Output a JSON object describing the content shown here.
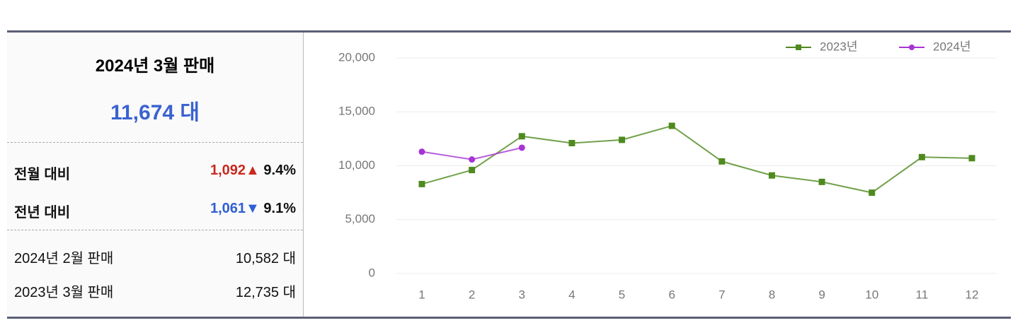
{
  "summary": {
    "title": "2024년 3월 판매",
    "total": "11,674 대",
    "compare": [
      {
        "label": "전월 대비",
        "diff": "1,092▲",
        "rate": "9.4%"
      },
      {
        "label": "전년 대비",
        "diff": "1,061▼",
        "rate": "9.1%"
      }
    ],
    "refs": [
      {
        "label": "2024년 2월 판매",
        "value": "10,582 대"
      },
      {
        "label": "2023년 3월 판매",
        "value": "12,735 대"
      }
    ]
  },
  "chart_data": {
    "type": "line",
    "categories": [
      "1",
      "2",
      "3",
      "4",
      "5",
      "6",
      "7",
      "8",
      "9",
      "10",
      "11",
      "12"
    ],
    "series": [
      {
        "name": "2023년",
        "color": "#4f8a1f",
        "values": [
          8300,
          9600,
          12735,
          12100,
          12400,
          13700,
          10400,
          9100,
          8500,
          7500,
          10800,
          10700
        ]
      },
      {
        "name": "2024년",
        "color": "#a634d4",
        "values": [
          11300,
          10582,
          11674,
          null,
          null,
          null,
          null,
          null,
          null,
          null,
          null,
          null
        ]
      }
    ],
    "ylim": [
      0,
      20000
    ],
    "yticks": [
      0,
      {
        "value": 5000,
        "label": "5,000"
      },
      {
        "value": 10000,
        "label": "10,000"
      },
      {
        "value": 15000,
        "label": "15,000"
      },
      {
        "value": 20000,
        "label": "20,000"
      }
    ],
    "grid": true
  }
}
